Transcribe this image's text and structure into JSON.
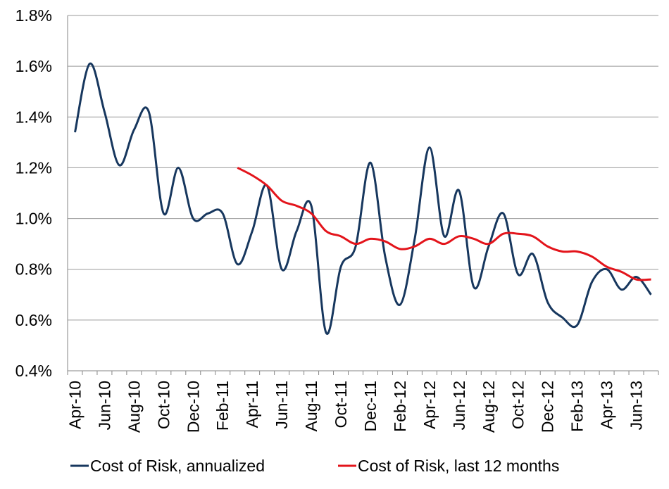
{
  "chart_data": {
    "type": "line",
    "categories": [
      "Apr-10",
      null,
      "Jun-10",
      null,
      "Aug-10",
      null,
      "Oct-10",
      null,
      "Dec-10",
      null,
      "Feb-11",
      null,
      "Apr-11",
      null,
      "Jun-11",
      null,
      "Aug-11",
      null,
      "Oct-11",
      null,
      "Dec-11",
      null,
      "Feb-12",
      null,
      "Apr-12",
      null,
      "Jun-12",
      null,
      "Aug-12",
      null,
      "Oct-12",
      null,
      "Dec-12",
      null,
      "Feb-13",
      null,
      "Apr-13",
      null,
      "Jun-13",
      null
    ],
    "series": [
      {
        "name": "Cost of Risk, annualized",
        "color": "#17375e",
        "values": [
          1.34,
          1.61,
          1.42,
          1.21,
          1.35,
          1.42,
          1.02,
          1.2,
          1.0,
          1.02,
          1.02,
          0.82,
          0.95,
          1.13,
          0.8,
          0.95,
          1.05,
          0.55,
          0.81,
          0.89,
          1.22,
          0.85,
          0.66,
          0.92,
          1.28,
          0.93,
          1.11,
          0.73,
          0.89,
          1.02,
          0.78,
          0.86,
          0.67,
          0.61,
          0.58,
          0.75,
          0.8,
          0.72,
          0.77,
          0.7
        ]
      },
      {
        "name": "Cost of Risk, last 12 months",
        "color": "#e3141b",
        "values": [
          null,
          null,
          null,
          null,
          null,
          null,
          null,
          null,
          null,
          null,
          null,
          1.2,
          1.17,
          1.13,
          1.07,
          1.05,
          1.02,
          0.95,
          0.93,
          0.9,
          0.92,
          0.91,
          0.88,
          0.89,
          0.92,
          0.9,
          0.93,
          0.92,
          0.9,
          0.94,
          0.94,
          0.93,
          0.89,
          0.87,
          0.87,
          0.85,
          0.81,
          0.79,
          0.76,
          0.76
        ]
      }
    ],
    "ylim": [
      0.4,
      1.8
    ],
    "yticks": [
      {
        "value": 0.4,
        "label": "0.4%"
      },
      {
        "value": 0.6,
        "label": "0.6%"
      },
      {
        "value": 0.8,
        "label": "0.8%"
      },
      {
        "value": 1.0,
        "label": "1.0%"
      },
      {
        "value": 1.2,
        "label": "1.2%"
      },
      {
        "value": 1.4,
        "label": "1.4%"
      },
      {
        "value": 1.6,
        "label": "1.6%"
      },
      {
        "value": 1.8,
        "label": "1.8%"
      }
    ],
    "grid": true,
    "legend": "bottom"
  }
}
